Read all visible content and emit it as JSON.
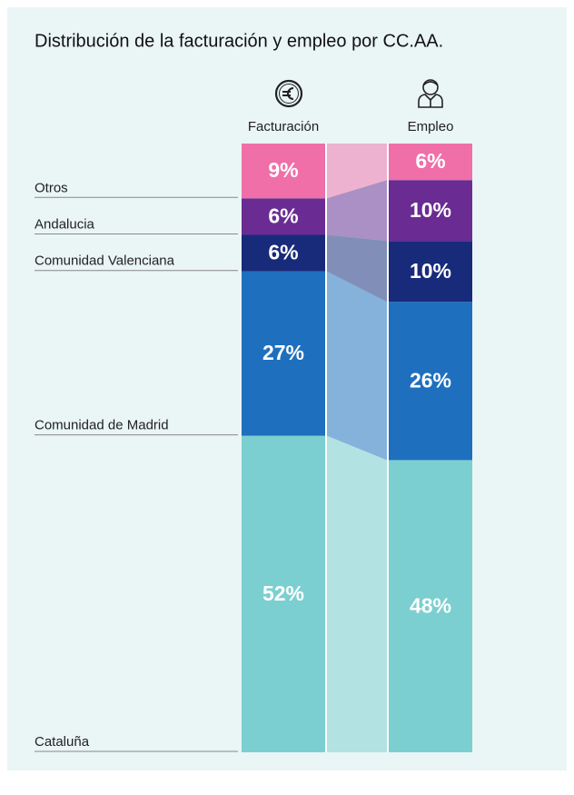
{
  "chart_data": {
    "type": "bar",
    "stacked": true,
    "title": "Distribución de la facturación y empleo por CC.AA.",
    "categories": [
      "Facturación",
      "Empleo"
    ],
    "series": [
      {
        "name": "Cataluña",
        "color": "#7ccfd0",
        "values": [
          52,
          48
        ],
        "value_labels": [
          "52%",
          "48%"
        ]
      },
      {
        "name": "Comunidad de Madrid",
        "color": "#1f6fbf",
        "values": [
          27,
          26
        ],
        "value_labels": [
          "27%",
          "26%"
        ]
      },
      {
        "name": "Comunidad Valenciana",
        "color": "#182a7a",
        "values": [
          6,
          10
        ],
        "value_labels": [
          "6%",
          "10%"
        ]
      },
      {
        "name": "Andalucia",
        "color": "#6a2c92",
        "values": [
          6,
          10
        ],
        "value_labels": [
          "6%",
          "10%"
        ]
      },
      {
        "name": "Otros",
        "color": "#f06fa8",
        "values": [
          9,
          6
        ],
        "value_labels": [
          "9%",
          "6%"
        ]
      }
    ]
  }
}
